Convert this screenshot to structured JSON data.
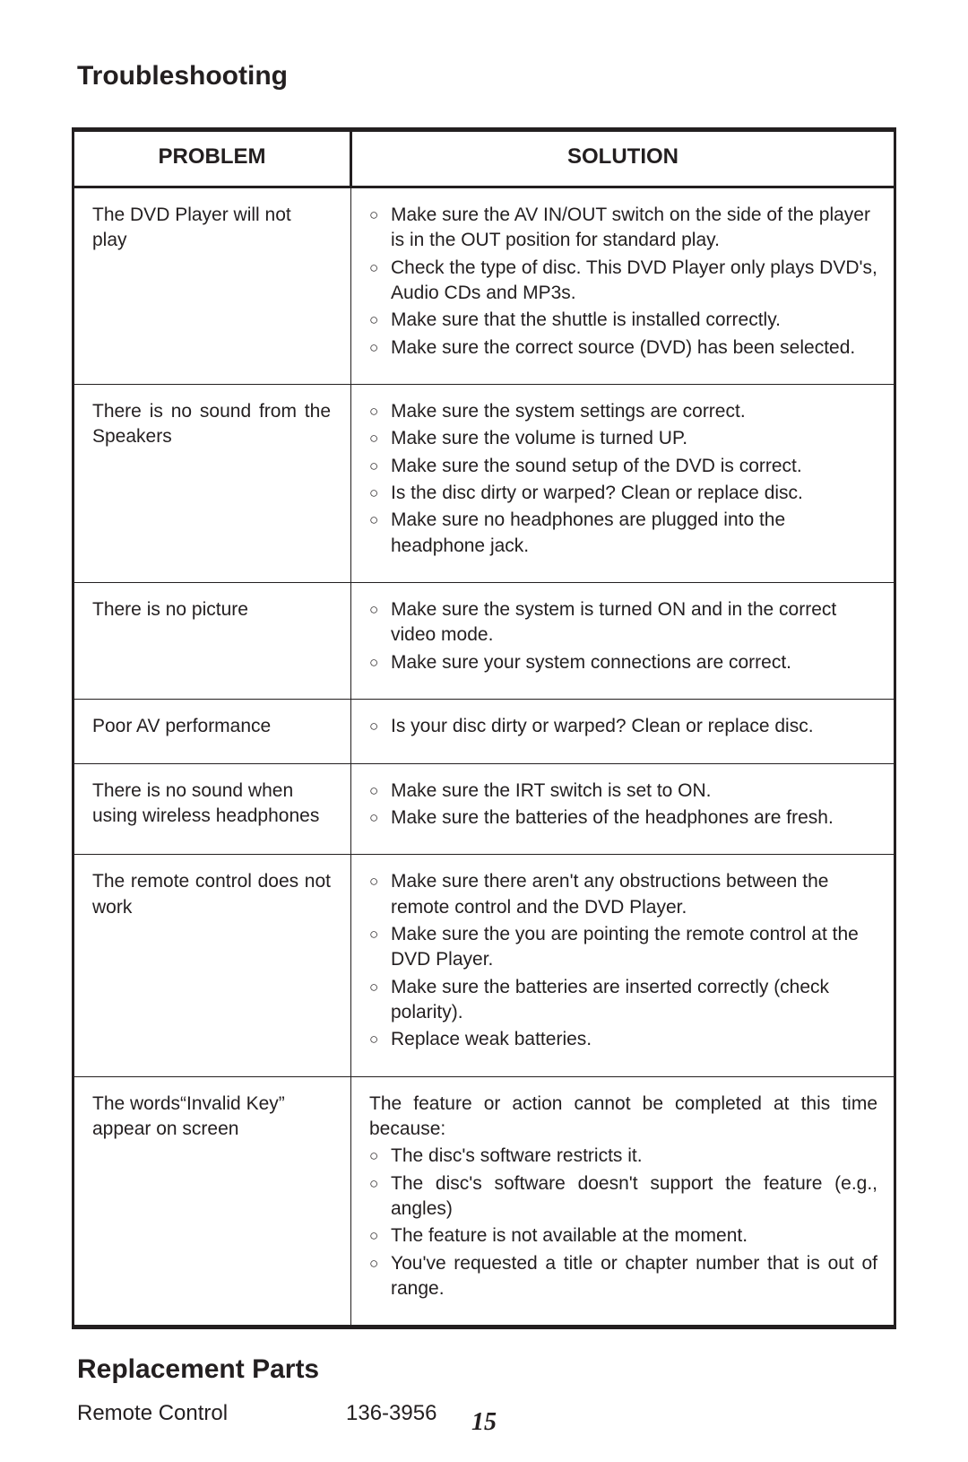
{
  "titles": {
    "troubleshooting": "Troubleshooting",
    "replacement_parts": "Replacement Parts"
  },
  "table": {
    "headers": {
      "problem": "PROBLEM",
      "solution": "SOLUTION"
    },
    "header_fontsize": 24,
    "cell_fontsize": 21,
    "border_color": "#231f20",
    "outer_border_width": 5,
    "inner_border_width": 1,
    "rows": [
      {
        "problem": "The DVD Player will not play",
        "solutions": [
          "Make sure the AV IN/OUT switch on the side of the player is in the OUT position for standard play.",
          "Check the type of disc. This DVD Player only plays DVD's, Audio CDs and MP3s.",
          "Make sure that the shuttle is installed correctly.",
          "Make sure the correct source (DVD) has been selected."
        ]
      },
      {
        "problem": "There is no sound from the Speakers",
        "problem_justify": true,
        "solutions": [
          "Make sure the system settings are correct.",
          "Make sure the volume is turned UP.",
          "Make sure the sound setup of the DVD is correct.",
          "Is the disc dirty or warped? Clean or replace disc.",
          "Make sure no headphones are plugged into the headphone jack."
        ]
      },
      {
        "problem": "There is no picture",
        "solutions": [
          "Make sure the system is turned ON and in the correct video mode.",
          "Make sure your system connections are correct."
        ]
      },
      {
        "problem": "Poor AV performance",
        "solutions": [
          "Is your disc dirty or warped? Clean or replace disc."
        ]
      },
      {
        "problem": "There is no sound when using wireless headphones",
        "solutions": [
          "Make sure the IRT switch is set to ON.",
          "Make sure the batteries of the headphones are fresh."
        ]
      },
      {
        "problem": "The remote control does not work",
        "problem_justify": true,
        "solutions": [
          "Make sure there aren't any obstructions between the remote control and the DVD Player.",
          "Make sure the you are pointing the remote control at the DVD Player.",
          "Make sure the batteries are inserted correctly (check polarity).",
          "Replace weak batteries."
        ]
      },
      {
        "problem": "The words“Invalid Key” appear on screen",
        "lead": "The feature or action cannot be completed at this time because:",
        "justify_solutions": true,
        "solutions": [
          "The disc's software restricts it.",
          "The disc's software doesn't support the feature (e.g., angles)",
          "The feature is not available at the moment.",
          "You've requested a title or chapter number that is out of range."
        ]
      }
    ]
  },
  "replacement_parts": {
    "items": [
      {
        "name": "Remote Control",
        "number": "136-3956"
      }
    ]
  },
  "page_number": "15",
  "colors": {
    "text": "#231f20",
    "background": "#ffffff"
  },
  "typography": {
    "body_font": "Arial",
    "title_fontsize": 30,
    "parts_fontsize": 24,
    "page_number_font": "Times New Roman Italic Bold",
    "page_number_fontsize": 28
  }
}
